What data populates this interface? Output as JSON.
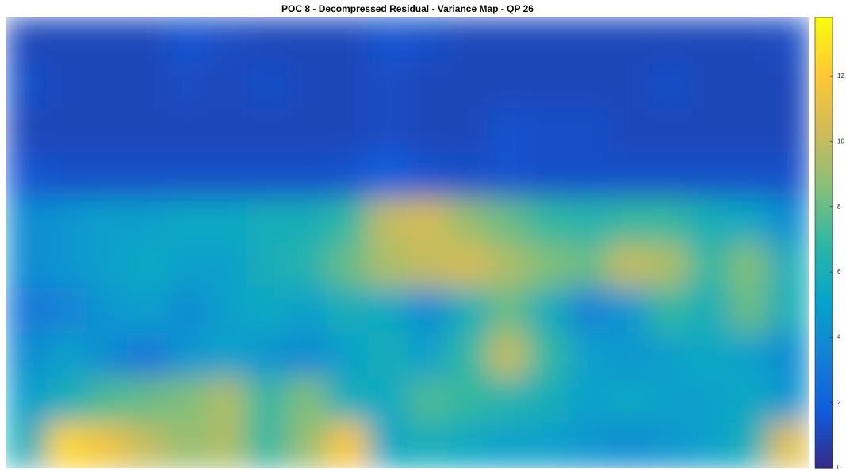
{
  "chart_data": {
    "type": "heatmap",
    "title": "POC 8 - Decompressed Residual - Variance Map - QP 26",
    "colormap": "parula",
    "zlim": [
      0,
      13.8
    ],
    "zticks": [
      0,
      2,
      4,
      6,
      8,
      10,
      12
    ],
    "values": [
      [
        1,
        1,
        1,
        1,
        1.5,
        1.2,
        1,
        1,
        1,
        1.5,
        1.3,
        1,
        1,
        1,
        1,
        1,
        1,
        1,
        1,
        1.2
      ],
      [
        1.3,
        1,
        1,
        1,
        1.2,
        1,
        1.3,
        1,
        1,
        1.2,
        1,
        1,
        1,
        1,
        1,
        1,
        1.3,
        1,
        1,
        1
      ],
      [
        1,
        1,
        1,
        1,
        1,
        1,
        1,
        1,
        1,
        1.2,
        1,
        1,
        1.4,
        1.3,
        1.3,
        1,
        1,
        1,
        1,
        1
      ],
      [
        1.5,
        1.3,
        1.3,
        1.3,
        1.3,
        1.3,
        1.3,
        1.3,
        1.4,
        1.8,
        1.4,
        1.3,
        1.4,
        1.3,
        1.3,
        1.3,
        1.3,
        1.3,
        1.3,
        1.3
      ],
      [
        4,
        4.5,
        5,
        5,
        5.5,
        5.5,
        6,
        6,
        7,
        10,
        10.5,
        9,
        8,
        7,
        6.5,
        7,
        7,
        6,
        5.5,
        4
      ],
      [
        4,
        4.5,
        5,
        5.5,
        5,
        5,
        6,
        6.5,
        8,
        9.5,
        10,
        10.5,
        9.5,
        8.5,
        8,
        10,
        9.5,
        7,
        8.5,
        6
      ],
      [
        3,
        3.5,
        4.5,
        5,
        4,
        5,
        5.5,
        5,
        6,
        5.5,
        4,
        6,
        8,
        6,
        3.5,
        4.5,
        7,
        6,
        8,
        6
      ],
      [
        4,
        5,
        4,
        3,
        4.5,
        5,
        4.5,
        4,
        5,
        6,
        5,
        7,
        10,
        7,
        5,
        4.5,
        5,
        5.5,
        5,
        4
      ],
      [
        5,
        6,
        7.5,
        8,
        8.5,
        9.5,
        7,
        8.5,
        6,
        5.5,
        7.5,
        7,
        6.5,
        6,
        5,
        5.5,
        5,
        5,
        5.5,
        4.5
      ],
      [
        6,
        12.5,
        11.5,
        10,
        9,
        9.5,
        7,
        9,
        12,
        5.5,
        6,
        5.5,
        5,
        5,
        4.5,
        4,
        4.5,
        5,
        6,
        11
      ]
    ]
  }
}
